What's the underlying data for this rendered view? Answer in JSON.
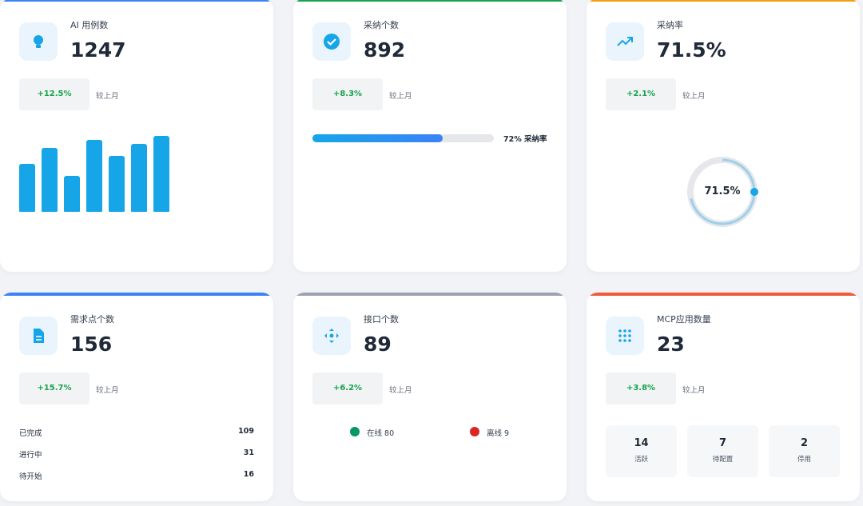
{
  "cards": [
    {
      "title": "AI 用例数",
      "value": "1247",
      "change": "+12.5%",
      "change_label": "较上月",
      "accent": "#3b82f6",
      "bars": [
        60,
        80,
        45,
        90,
        70,
        85,
        95
      ],
      "bar_color": "#16a6e8"
    },
    {
      "title": "采纳个数",
      "value": "892",
      "change": "+8.3%",
      "change_label": "较上月",
      "accent": "#16a34a",
      "progress": {
        "value": 72,
        "label": "72% 采纳率"
      }
    },
    {
      "title": "采纳率",
      "value": "71.5%",
      "change": "+2.1%",
      "change_label": "较上月",
      "accent": "#f59e0b",
      "ring": {
        "value": 71.5,
        "label": "71.5%"
      }
    },
    {
      "title": "需求点个数",
      "value": "156",
      "change": "+15.7%",
      "change_label": "较上月",
      "accent": "#3b82f6",
      "list": [
        {
          "label": "已完成",
          "value": "109"
        },
        {
          "label": "进行中",
          "value": "31"
        },
        {
          "label": "待开始",
          "value": "16"
        }
      ]
    },
    {
      "title": "接口个数",
      "value": "89",
      "change": "+6.2%",
      "change_label": "较上月",
      "accent": "#9ca3af",
      "status": [
        {
          "label": "在线 80",
          "color": "#059669"
        },
        {
          "label": "离线 9",
          "color": "#dc2626"
        }
      ]
    },
    {
      "title": "MCP应用数量",
      "value": "23",
      "change": "+3.8%",
      "change_label": "较上月",
      "accent": "#f05a3a",
      "tiles": [
        {
          "value": "14",
          "label": "活跃"
        },
        {
          "value": "7",
          "label": "待配置"
        },
        {
          "value": "2",
          "label": "停用"
        }
      ]
    }
  ]
}
